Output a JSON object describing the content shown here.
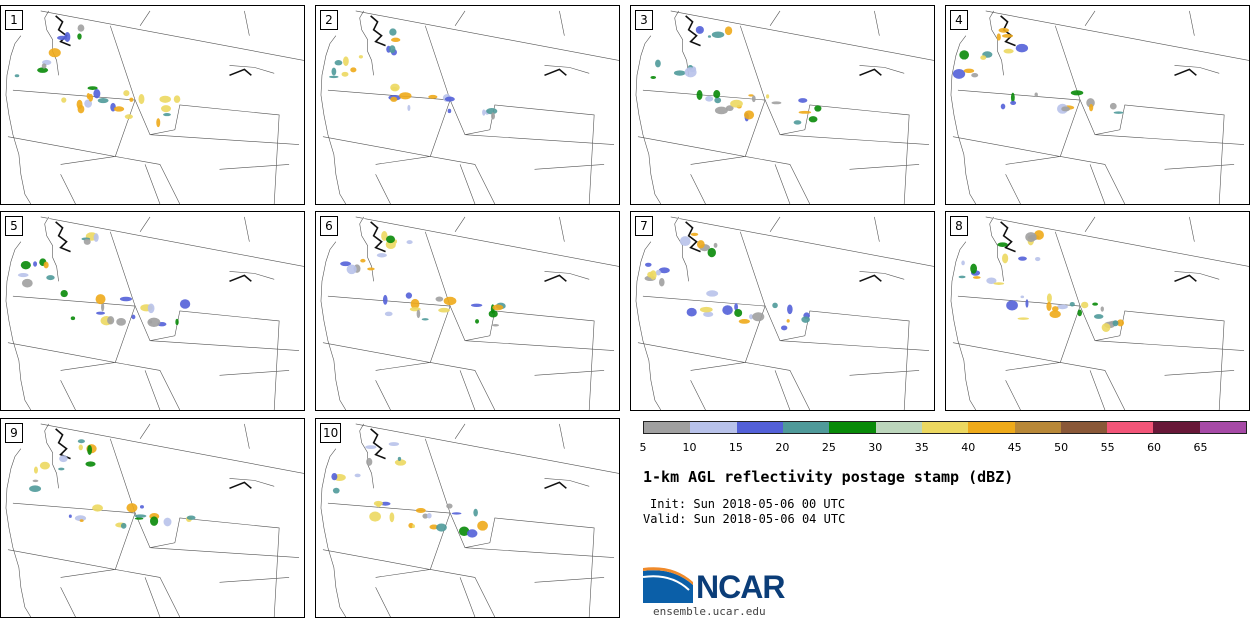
{
  "panels": [
    {
      "label": "1"
    },
    {
      "label": "2"
    },
    {
      "label": "3"
    },
    {
      "label": "4"
    },
    {
      "label": "5"
    },
    {
      "label": "6"
    },
    {
      "label": "7"
    },
    {
      "label": "8"
    },
    {
      "label": "9"
    },
    {
      "label": "10"
    }
  ],
  "colorbar": {
    "colors": [
      "#a0a0a0",
      "#b8c2ea",
      "#5360d8",
      "#4f9a9a",
      "#088a08",
      "#bcd6bc",
      "#ecd860",
      "#eeaa1a",
      "#b88838",
      "#8a5838",
      "#f25578",
      "#681838",
      "#a64aa6"
    ],
    "ticks": [
      "5",
      "10",
      "15",
      "20",
      "25",
      "30",
      "35",
      "40",
      "45",
      "50",
      "55",
      "60",
      "65"
    ]
  },
  "title": "1-km AGL reflectivity postage stamp (dBZ)",
  "init_text": "Init: Sun 2018-05-06 00 UTC",
  "valid_text": "Valid: Sun 2018-05-06 04 UTC",
  "logo": {
    "text": "NCAR",
    "url": "ensemble.ucar.edu"
  }
}
